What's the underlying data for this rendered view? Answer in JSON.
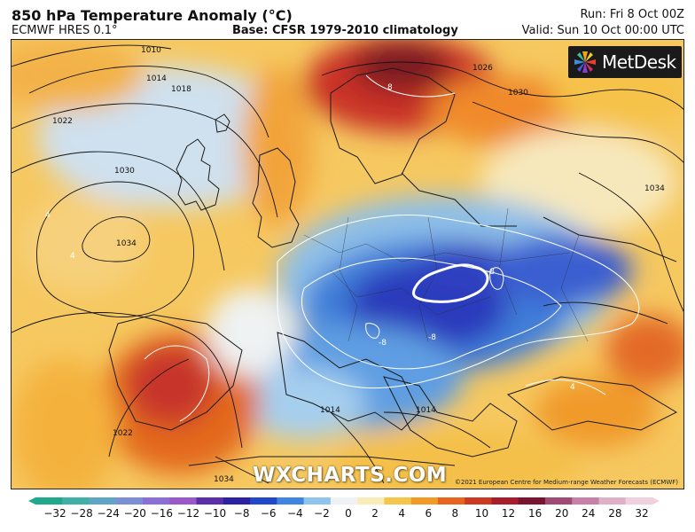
{
  "header": {
    "title": "850 hPa Temperature Anomaly (°C)",
    "model": "ECMWF HRES 0.1°",
    "base": "Base: CFSR 1979-2010 climatology",
    "run": "Run: Fri 8 Oct 00Z",
    "valid": "Valid: Sun 10 Oct 00:00 UTC"
  },
  "logo": {
    "text": "MetDesk"
  },
  "watermark": "WXCHARTS.COM",
  "copyright": "©2021 European Centre for Medium-range Weather Forecasts (ECMWF)",
  "isobars": [
    "1010",
    "1014",
    "1018",
    "1022",
    "1030",
    "1034",
    "1026",
    "1030",
    "1034",
    "1022",
    "1014",
    "1014",
    "1034"
  ],
  "anomaly_labels": [
    "8",
    "-8",
    "-8",
    "-8",
    "4",
    "4",
    "4"
  ],
  "colorbar": {
    "ticks": [
      "−32",
      "−28",
      "−24",
      "−20",
      "−16",
      "−12",
      "−10",
      "−8",
      "−6",
      "−4",
      "−2",
      "0",
      "2",
      "4",
      "6",
      "8",
      "10",
      "12",
      "16",
      "20",
      "24",
      "28",
      "32"
    ],
    "colors": [
      "#1fa88a",
      "#3fb0a8",
      "#5fa6c6",
      "#7a8fd6",
      "#8a6fd6",
      "#9a58c8",
      "#5a2fa8",
      "#2a22a0",
      "#2048c8",
      "#3f86e0",
      "#8ec4ee",
      "#eef2f4",
      "#f8ecb8",
      "#f6c64a",
      "#f29a26",
      "#e8641e",
      "#cc3a22",
      "#a81e2a",
      "#7a1430",
      "#a04a74",
      "#c880a8",
      "#e0b0c8",
      "#f0d0dc"
    ]
  },
  "colors": {
    "warm": "#f2a028",
    "hot": "#d2432a",
    "cold": "#2a3cbf",
    "cool": "#7fb4e4"
  }
}
